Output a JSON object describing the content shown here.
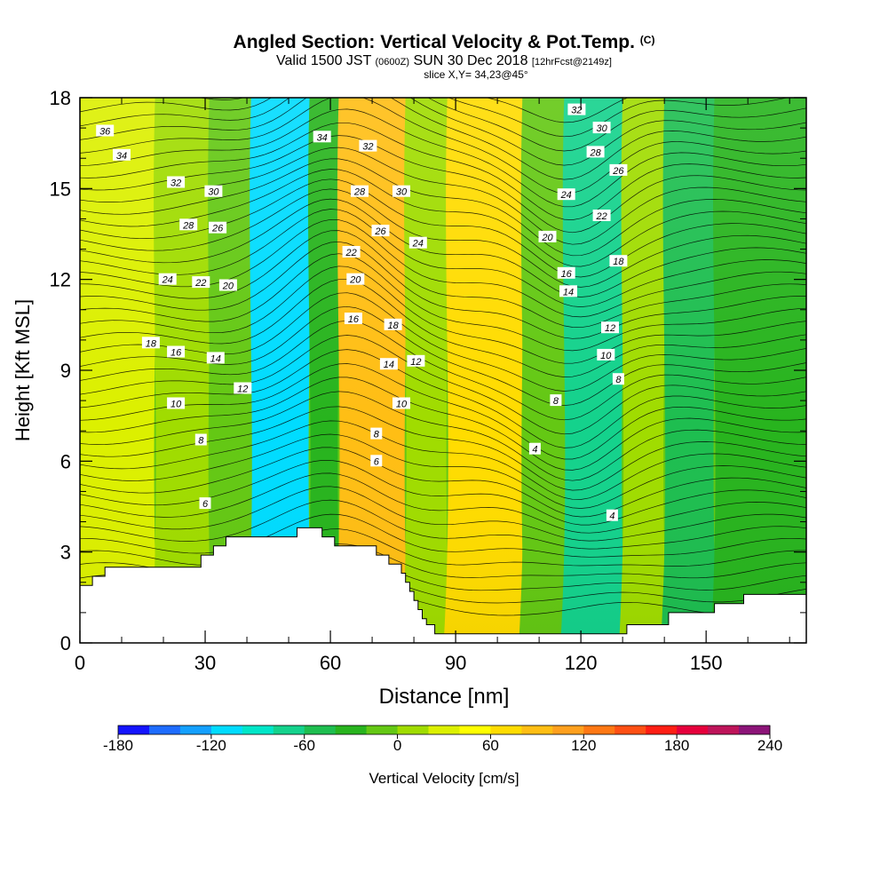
{
  "header": {
    "title_main": "Angled Section: Vertical Velocity & Pot.Temp.",
    "title_unit": "(C)",
    "valid_a": "Valid 1500 JST",
    "valid_b": "(0600Z)",
    "valid_c": "SUN 30 Dec 2018",
    "valid_d": "[12hrFcst@2149z]",
    "slice": "slice X,Y= 34,23@45°"
  },
  "chart_data": {
    "type": "heatmap",
    "xlabel": "Distance [nm]",
    "ylabel": "Height [Kft MSL]",
    "xlim": [
      0,
      174
    ],
    "ylim": [
      0,
      18
    ],
    "x_ticks": [
      0,
      30,
      60,
      90,
      120,
      150
    ],
    "y_ticks": [
      0,
      3,
      6,
      9,
      12,
      15,
      18
    ],
    "colorbar": {
      "label": "Vertical Velocity [cm/s]",
      "tick_labels": [
        -180,
        -120,
        -60,
        0,
        60,
        120,
        180,
        240
      ],
      "levels": [
        -180,
        -160,
        -140,
        -120,
        -100,
        -80,
        -60,
        -40,
        -20,
        0,
        20,
        40,
        60,
        80,
        100,
        120,
        140,
        160,
        180,
        200,
        220,
        240
      ],
      "colors": [
        "#1414ff",
        "#1e6cff",
        "#14a0ff",
        "#00dcff",
        "#00e6c8",
        "#14d28c",
        "#1ebe50",
        "#28b41e",
        "#64c814",
        "#a0dc00",
        "#dcf000",
        "#ffff00",
        "#ffdc00",
        "#ffbe14",
        "#ffa01e",
        "#ff7814",
        "#ff5014",
        "#ff1e14",
        "#e6003c",
        "#be145a",
        "#8c1478"
      ]
    },
    "vertical_velocity_bands": [
      {
        "x": 0,
        "w": 18
      },
      {
        "x": 18,
        "w": 13
      },
      {
        "x": 31,
        "w": 10
      },
      {
        "x": 41,
        "w": 14
      },
      {
        "x": 55,
        "w": 7
      },
      {
        "x": 62,
        "w": 16
      },
      {
        "x": 78,
        "w": 10
      },
      {
        "x": 88,
        "w": 18
      },
      {
        "x": 106,
        "w": 10
      },
      {
        "x": 116,
        "w": 14
      },
      {
        "x": 130,
        "w": 10
      },
      {
        "x": 140,
        "w": 12
      },
      {
        "x": 152,
        "w": 22
      }
    ],
    "terrain": [
      [
        0,
        0
      ],
      [
        0,
        1.9
      ],
      [
        3,
        1.9
      ],
      [
        3,
        2.2
      ],
      [
        6,
        2.2
      ],
      [
        6,
        2.5
      ],
      [
        29,
        2.5
      ],
      [
        29,
        2.9
      ],
      [
        32,
        2.9
      ],
      [
        32,
        3.2
      ],
      [
        35,
        3.2
      ],
      [
        35,
        3.5
      ],
      [
        52,
        3.5
      ],
      [
        52,
        3.8
      ],
      [
        58,
        3.8
      ],
      [
        58,
        3.5
      ],
      [
        61,
        3.5
      ],
      [
        61,
        3.2
      ],
      [
        71,
        3.2
      ],
      [
        71,
        2.9
      ],
      [
        74,
        2.9
      ],
      [
        74,
        2.6
      ],
      [
        77,
        2.6
      ],
      [
        77,
        2.3
      ],
      [
        78,
        2.3
      ],
      [
        78,
        2.0
      ],
      [
        79,
        2.0
      ],
      [
        79,
        1.7
      ],
      [
        80,
        1.7
      ],
      [
        80,
        1.4
      ],
      [
        81,
        1.4
      ],
      [
        81,
        1.1
      ],
      [
        82,
        1.1
      ],
      [
        82,
        0.8
      ],
      [
        83,
        0.8
      ],
      [
        83,
        0.6
      ],
      [
        85,
        0.6
      ],
      [
        85,
        0.3
      ],
      [
        131,
        0.3
      ],
      [
        131,
        0.6
      ],
      [
        141,
        0.6
      ],
      [
        141,
        1.0
      ],
      [
        152,
        1.0
      ],
      [
        152,
        1.3
      ],
      [
        159,
        1.3
      ],
      [
        159,
        1.6
      ],
      [
        174,
        1.6
      ],
      [
        174,
        0
      ]
    ],
    "pot_temp_labels": [
      {
        "text": "36",
        "x": 6,
        "y": 16.9
      },
      {
        "text": "34",
        "x": 10,
        "y": 16.1
      },
      {
        "text": "32",
        "x": 23,
        "y": 15.2
      },
      {
        "text": "30",
        "x": 32,
        "y": 14.9
      },
      {
        "text": "28",
        "x": 26,
        "y": 13.8
      },
      {
        "text": "26",
        "x": 33,
        "y": 13.7
      },
      {
        "text": "24",
        "x": 21,
        "y": 12.0
      },
      {
        "text": "22",
        "x": 29,
        "y": 11.9
      },
      {
        "text": "20",
        "x": 35.5,
        "y": 11.8
      },
      {
        "text": "18",
        "x": 17,
        "y": 9.9
      },
      {
        "text": "16",
        "x": 23,
        "y": 9.6
      },
      {
        "text": "14",
        "x": 32.5,
        "y": 9.4
      },
      {
        "text": "12",
        "x": 39,
        "y": 8.4
      },
      {
        "text": "10",
        "x": 23,
        "y": 7.9
      },
      {
        "text": "8",
        "x": 29,
        "y": 6.7
      },
      {
        "text": "6",
        "x": 30,
        "y": 4.6
      },
      {
        "text": "34",
        "x": 58,
        "y": 16.7
      },
      {
        "text": "32",
        "x": 69,
        "y": 16.4
      },
      {
        "text": "28",
        "x": 67,
        "y": 14.9
      },
      {
        "text": "30",
        "x": 77,
        "y": 14.9
      },
      {
        "text": "26",
        "x": 72,
        "y": 13.6
      },
      {
        "text": "24",
        "x": 81,
        "y": 13.2
      },
      {
        "text": "22",
        "x": 65,
        "y": 12.9
      },
      {
        "text": "20",
        "x": 66,
        "y": 12.0
      },
      {
        "text": "18",
        "x": 75,
        "y": 10.5
      },
      {
        "text": "16",
        "x": 65.5,
        "y": 10.7
      },
      {
        "text": "14",
        "x": 74,
        "y": 9.2
      },
      {
        "text": "12",
        "x": 80.5,
        "y": 9.3
      },
      {
        "text": "10",
        "x": 77,
        "y": 7.9
      },
      {
        "text": "8",
        "x": 71,
        "y": 6.9
      },
      {
        "text": "6",
        "x": 71,
        "y": 6.0
      },
      {
        "text": "32",
        "x": 119,
        "y": 17.6
      },
      {
        "text": "30",
        "x": 125,
        "y": 17.0
      },
      {
        "text": "28",
        "x": 123.5,
        "y": 16.2
      },
      {
        "text": "26",
        "x": 129,
        "y": 15.6
      },
      {
        "text": "24",
        "x": 116.5,
        "y": 14.8
      },
      {
        "text": "22",
        "x": 125,
        "y": 14.1
      },
      {
        "text": "20",
        "x": 112,
        "y": 13.4
      },
      {
        "text": "18",
        "x": 129,
        "y": 12.6
      },
      {
        "text": "16",
        "x": 116.5,
        "y": 12.2
      },
      {
        "text": "14",
        "x": 117,
        "y": 11.6
      },
      {
        "text": "12",
        "x": 127,
        "y": 10.4
      },
      {
        "text": "10",
        "x": 126,
        "y": 9.5
      },
      {
        "text": "8",
        "x": 129,
        "y": 8.7
      },
      {
        "text": "8",
        "x": 114,
        "y": 8.0
      },
      {
        "text": "4",
        "x": 109,
        "y": 6.4
      },
      {
        "text": "4",
        "x": 127.5,
        "y": 4.2
      }
    ]
  }
}
